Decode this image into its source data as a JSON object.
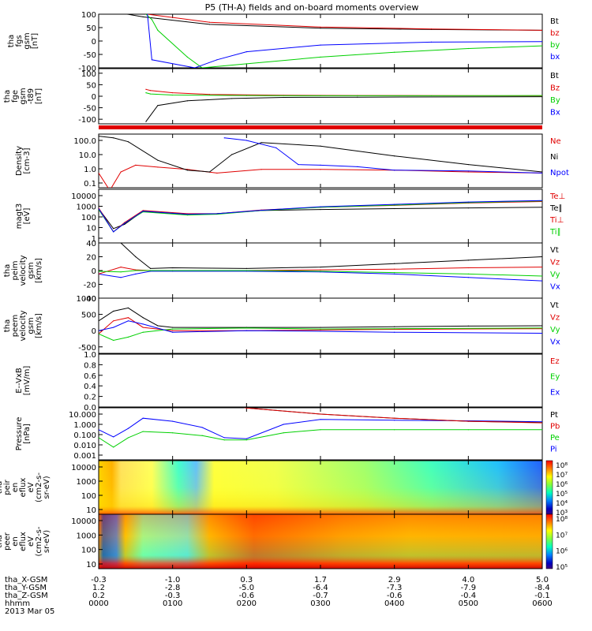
{
  "title": "P5 (TH-A) fields and on-board moments overview",
  "colors": {
    "black": "#000000",
    "red": "#e00000",
    "green": "#00d000",
    "blue": "#0000ff"
  },
  "chart_data": [
    {
      "type": "line",
      "panel": "fgs",
      "ylabel": [
        "tha",
        "fgs",
        "gsm",
        "[nT]"
      ],
      "yticks": [
        "100",
        "50",
        "0",
        "-50",
        "-100"
      ],
      "ylim": [
        -100,
        100
      ],
      "legend": [
        {
          "name": "Bt",
          "color": "black"
        },
        {
          "name": "bz",
          "color": "red"
        },
        {
          "name": "by",
          "color": "green"
        },
        {
          "name": "bx",
          "color": "blue"
        }
      ],
      "series": [
        {
          "name": "Bt",
          "color": "black",
          "x": [
            0.39,
            0.6,
            1.5,
            3,
            4.5,
            6
          ],
          "y": [
            100,
            90,
            62,
            48,
            43,
            40
          ]
        },
        {
          "name": "bz",
          "color": "red",
          "x": [
            0.66,
            1.5,
            3,
            4.5,
            6
          ],
          "y": [
            100,
            70,
            52,
            45,
            40
          ]
        },
        {
          "name": "by",
          "color": "green",
          "x": [
            0.64,
            0.72,
            0.8,
            1.2,
            1.4,
            2,
            3,
            4,
            5,
            6
          ],
          "y": [
            100,
            80,
            40,
            -60,
            -100,
            -85,
            -60,
            -42,
            -28,
            -18
          ]
        },
        {
          "name": "bx",
          "color": "blue",
          "x": [
            0.66,
            0.72,
            1.3,
            1.6,
            2,
            3,
            4.5,
            6
          ],
          "y": [
            100,
            -70,
            -100,
            -70,
            -40,
            -15,
            -4,
            -2
          ]
        }
      ]
    },
    {
      "type": "line",
      "panel": "fgm_tgg",
      "ylabel": [
        "tha",
        "fge",
        "gsm",
        "-t89",
        "[nT]"
      ],
      "yticks": [
        "100",
        "50",
        "0",
        "-50",
        "-100"
      ],
      "ylim": [
        -120,
        120
      ],
      "legend": [
        {
          "name": "Bt",
          "color": "black"
        },
        {
          "name": "Bz",
          "color": "red"
        },
        {
          "name": "By",
          "color": "green"
        },
        {
          "name": "Bx",
          "color": "blue"
        }
      ],
      "series": [
        {
          "name": "Bt",
          "color": "black",
          "x": [
            0.64,
            0.8,
            1.2,
            1.8,
            2.5,
            3.5,
            6
          ],
          "y": [
            -110,
            -40,
            -20,
            -10,
            -5,
            -4,
            -2
          ]
        },
        {
          "name": "Bz",
          "color": "red",
          "x": [
            0.64,
            0.7,
            1,
            1.5,
            2.5,
            3.5,
            6
          ],
          "y": [
            30,
            25,
            15,
            8,
            4,
            3,
            2
          ]
        },
        {
          "name": "By",
          "color": "green",
          "x": [
            0.64,
            0.7,
            1,
            2,
            3,
            4.5,
            6
          ],
          "y": [
            15,
            10,
            5,
            3,
            2,
            2,
            3
          ]
        }
      ]
    },
    {
      "type": "line",
      "panel": "density",
      "ylabel": [
        "Density",
        "[cm-3]"
      ],
      "yticks": [
        "100.0",
        "10.0",
        "1.0",
        "0.1"
      ],
      "scale": "log",
      "legend": [
        {
          "name": "Ne",
          "color": "red"
        },
        {
          "name": "Ni",
          "color": "black"
        },
        {
          "name": "Npot",
          "color": "blue"
        }
      ],
      "series": [
        {
          "name": "Ne",
          "color": "red",
          "x": [
            0,
            0.15,
            0.3,
            0.5,
            0.8,
            1.2,
            1.6,
            2.2,
            3,
            4,
            5,
            6
          ],
          "y": [
            0.5,
            0.03,
            0.6,
            1.8,
            1.3,
            0.9,
            0.5,
            0.9,
            0.9,
            0.8,
            0.6,
            0.5
          ]
        },
        {
          "name": "Ni",
          "color": "black",
          "x": [
            0,
            0.2,
            0.4,
            0.8,
            1.2,
            1.5,
            1.8,
            2.2,
            3,
            4,
            5,
            6
          ],
          "y": [
            200,
            150,
            80,
            4,
            0.8,
            0.6,
            10,
            70,
            40,
            8,
            2,
            0.6
          ]
        },
        {
          "name": "Npot",
          "color": "blue",
          "x": [
            1.7,
            2,
            2.4,
            2.7,
            3,
            3.5,
            4,
            5,
            6
          ],
          "y": [
            150,
            100,
            30,
            2,
            1.8,
            1.4,
            0.8,
            0.7,
            0.5
          ]
        }
      ]
    },
    {
      "type": "line",
      "panel": "temperature",
      "ylabel": [
        "magt3",
        "[eV]"
      ],
      "yticks": [
        "10000",
        "1000",
        "100",
        "10",
        "1"
      ],
      "scale": "log",
      "legend": [
        {
          "name": "Te⊥",
          "color": "red"
        },
        {
          "name": "Te∥",
          "color": "black"
        },
        {
          "name": "Ti⊥",
          "color": "red"
        },
        {
          "name": "Ti∥",
          "color": "green"
        }
      ],
      "series": [
        {
          "name": "Te∥",
          "color": "black",
          "x": [
            0,
            0.2,
            0.35,
            0.6,
            1.2,
            1.6,
            2.2,
            3,
            4,
            5,
            6
          ],
          "y": [
            600,
            8,
            20,
            350,
            160,
            200,
            400,
            500,
            600,
            700,
            800
          ]
        },
        {
          "name": "Ti⊥",
          "color": "red",
          "x": [
            0,
            0.2,
            0.35,
            0.6,
            1.2,
            1.6,
            2.2,
            3,
            4,
            5,
            6
          ],
          "y": [
            700,
            4,
            30,
            400,
            200,
            200,
            450,
            800,
            1200,
            2000,
            2800
          ]
        },
        {
          "name": "Ti∥",
          "color": "green",
          "x": [
            0,
            0.2,
            0.35,
            0.6,
            1.2,
            1.6,
            2.2,
            3,
            4,
            5,
            6
          ],
          "y": [
            500,
            4,
            25,
            300,
            150,
            180,
            400,
            800,
            1300,
            2200,
            3200
          ]
        },
        {
          "name": "Ti⊥b",
          "color": "blue",
          "x": [
            0,
            0.2,
            0.35,
            0.6,
            1.2,
            1.6,
            2.2,
            3,
            4,
            5,
            6
          ],
          "y": [
            600,
            4,
            25,
            350,
            180,
            200,
            420,
            900,
            1500,
            2500,
            3500
          ]
        }
      ]
    },
    {
      "type": "line",
      "panel": "peim_velocity",
      "ylabel": [
        "tha",
        "peim",
        "velocity",
        "gsm",
        "[km/s]"
      ],
      "yticks": [
        "40",
        "20",
        "0",
        "-20",
        "-40"
      ],
      "ylim": [
        -40,
        40
      ],
      "legend": [
        {
          "name": "Vt",
          "color": "black"
        },
        {
          "name": "Vz",
          "color": "red"
        },
        {
          "name": "Vy",
          "color": "green"
        },
        {
          "name": "Vx",
          "color": "blue"
        }
      ],
      "series": [
        {
          "name": "Vt",
          "color": "black",
          "x": [
            0,
            0.3,
            0.5,
            0.7,
            1,
            2,
            3,
            4,
            5,
            6
          ],
          "y": [
            40,
            40,
            20,
            3,
            4,
            3,
            5,
            10,
            15,
            20
          ]
        },
        {
          "name": "Vx",
          "color": "blue",
          "x": [
            0,
            0.3,
            0.5,
            0.7,
            1,
            2,
            3,
            4,
            5,
            6
          ],
          "y": [
            -5,
            -10,
            -5,
            -1,
            -1,
            -1,
            -2,
            -5,
            -10,
            -15
          ]
        },
        {
          "name": "Vz",
          "color": "red",
          "x": [
            0,
            0.3,
            0.5,
            0.7,
            1,
            2,
            3,
            4,
            5,
            6
          ],
          "y": [
            -5,
            5,
            1,
            0,
            0,
            0,
            1,
            2,
            4,
            5
          ]
        },
        {
          "name": "Vy",
          "color": "green",
          "x": [
            0,
            0.3,
            0.5,
            0.7,
            1,
            2,
            3,
            4,
            5,
            6
          ],
          "y": [
            -1,
            -2,
            0,
            0,
            0,
            0,
            -1,
            -3,
            -5,
            -8
          ]
        }
      ]
    },
    {
      "type": "line",
      "panel": "peem_velocity",
      "ylabel": [
        "tha",
        "peem",
        "velocity",
        "gsm",
        "[km/s]"
      ],
      "yticks": [
        "1000",
        "500",
        "0",
        "-500"
      ],
      "ylim": [
        -700,
        1000
      ],
      "legend": [
        {
          "name": "Vt",
          "color": "black"
        },
        {
          "name": "Vz",
          "color": "red"
        },
        {
          "name": "Vy",
          "color": "green"
        },
        {
          "name": "Vx",
          "color": "blue"
        }
      ],
      "series": [
        {
          "name": "Vt",
          "color": "black",
          "x": [
            0,
            0.2,
            0.4,
            0.6,
            0.8,
            1,
            2,
            3,
            4,
            5,
            6
          ],
          "y": [
            300,
            600,
            700,
            400,
            150,
            100,
            100,
            100,
            120,
            140,
            150
          ]
        },
        {
          "name": "Vz",
          "color": "red",
          "x": [
            0,
            0.2,
            0.4,
            0.6,
            1,
            2,
            3,
            4,
            6
          ],
          "y": [
            -100,
            300,
            400,
            100,
            0,
            0,
            20,
            40,
            60
          ]
        },
        {
          "name": "Vy",
          "color": "green",
          "x": [
            0,
            0.2,
            0.4,
            0.6,
            1,
            2,
            3,
            4,
            6
          ],
          "y": [
            -100,
            -300,
            -200,
            -50,
            50,
            80,
            50,
            60,
            80
          ]
        },
        {
          "name": "Vx",
          "color": "blue",
          "x": [
            0,
            0.2,
            0.4,
            0.6,
            1,
            2,
            3,
            4,
            6
          ],
          "y": [
            0,
            100,
            300,
            200,
            -50,
            0,
            -20,
            -50,
            -80
          ]
        }
      ]
    },
    {
      "type": "line",
      "panel": "e_field",
      "ylabel": [
        "E--VxB",
        "[mV/m]"
      ],
      "yticks": [
        "1.0",
        "0.8",
        "0.6",
        "0.4",
        "0.2",
        "0.0"
      ],
      "ylim": [
        0,
        1
      ],
      "legend": [
        {
          "name": "Ez",
          "color": "red"
        },
        {
          "name": "Ey",
          "color": "green"
        },
        {
          "name": "Ex",
          "color": "blue"
        }
      ],
      "series": []
    },
    {
      "type": "line",
      "panel": "pressure",
      "ylabel": [
        "Pressure",
        "[nPa]"
      ],
      "yticks": [
        "10.000",
        "1.000",
        "0.100",
        "0.010",
        "0.001"
      ],
      "scale": "log",
      "legend": [
        {
          "name": "Pt",
          "color": "black"
        },
        {
          "name": "Pb",
          "color": "red"
        },
        {
          "name": "Pe",
          "color": "green"
        },
        {
          "name": "Pi",
          "color": "blue"
        }
      ],
      "series": [
        {
          "name": "Pi",
          "color": "blue",
          "x": [
            0,
            0.2,
            0.4,
            0.6,
            1,
            1.4,
            1.7,
            2,
            2.5,
            3,
            4,
            5,
            6
          ],
          "y": [
            0.3,
            0.06,
            0.4,
            4,
            2,
            0.5,
            0.05,
            0.04,
            1,
            3,
            2.5,
            2.2,
            1.8
          ]
        },
        {
          "name": "Pe",
          "color": "green",
          "x": [
            0,
            0.2,
            0.4,
            0.6,
            1,
            1.4,
            1.7,
            2,
            2.5,
            3,
            4,
            5,
            6
          ],
          "y": [
            0.05,
            0.006,
            0.05,
            0.2,
            0.15,
            0.08,
            0.03,
            0.03,
            0.15,
            0.3,
            0.3,
            0.3,
            0.3
          ]
        },
        {
          "name": "Pt",
          "color": "black",
          "x": [
            1.8,
            2,
            3,
            4,
            5,
            6
          ],
          "y": [
            70,
            40,
            10,
            4,
            2,
            1.5
          ]
        },
        {
          "name": "Pb",
          "color": "red",
          "x": [
            1.8,
            2,
            3,
            4,
            5,
            6
          ],
          "y": [
            70,
            40,
            10,
            4,
            2,
            1.4
          ]
        }
      ]
    },
    {
      "type": "heatmap",
      "panel": "peir_spec",
      "ylabel": [
        "tha",
        "peir",
        "en",
        "eflux",
        "eV",
        "(cm2-s-",
        "sr-eV)"
      ],
      "yticks": [
        "10000",
        "1000",
        "100",
        "10"
      ],
      "scale": "log",
      "colorbar_ticks": [
        "10⁸",
        "10⁷",
        "10⁶",
        "10⁵",
        "10⁴",
        "10³"
      ]
    },
    {
      "type": "heatmap",
      "panel": "peer_spec",
      "ylabel": [
        "tha",
        "peer",
        "en",
        "eflux",
        "eV",
        "(cm2-s-",
        "sr-eV)"
      ],
      "yticks": [
        "10000",
        "1000",
        "100",
        "10"
      ],
      "scale": "log",
      "colorbar_ticks": [
        "10⁸",
        "10⁷",
        "10⁶",
        "10⁵"
      ]
    }
  ],
  "xaxis": {
    "rows": [
      {
        "label": "tha_X-GSM",
        "values": [
          "-0.3",
          "-1.0",
          "0.3",
          "1.7",
          "2.9",
          "4.0",
          "5.0"
        ]
      },
      {
        "label": "tha_Y-GSM",
        "values": [
          "1.2",
          "-2.8",
          "-5.0",
          "-6.4",
          "-7.3",
          "-7.9",
          "-8.4"
        ]
      },
      {
        "label": "tha_Z-GSM",
        "values": [
          "0.2",
          "-0.3",
          "-0.6",
          "-0.7",
          "-0.6",
          "-0.4",
          "-0.1"
        ]
      },
      {
        "label": "hhmm",
        "values": [
          "0000",
          "0100",
          "0200",
          "0300",
          "0400",
          "0500",
          "0600"
        ]
      }
    ],
    "date": "2013 Mar 05"
  }
}
